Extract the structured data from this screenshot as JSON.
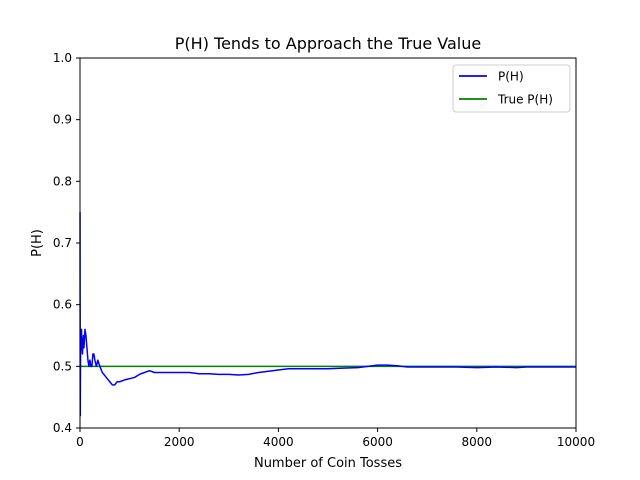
{
  "chart_data": {
    "type": "line",
    "title": "P(H) Tends to Approach the True Value",
    "xlabel": "Number of Coin Tosses",
    "ylabel": "P(H)",
    "xlim": [
      0,
      10000
    ],
    "ylim": [
      0.4,
      1.0
    ],
    "xticks": [
      0,
      2000,
      4000,
      6000,
      8000,
      10000
    ],
    "xtick_labels": [
      "0",
      "2000",
      "4000",
      "6000",
      "8000",
      "10000"
    ],
    "yticks": [
      0.4,
      0.5,
      0.6,
      0.7,
      0.8,
      0.9,
      1.0
    ],
    "ytick_labels": [
      "0.4",
      "0.5",
      "0.6",
      "0.7",
      "0.8",
      "0.9",
      "1.0"
    ],
    "grid": false,
    "legend_position": "top-right",
    "series": [
      {
        "name": "P(H)",
        "color": "#0000ff",
        "x": [
          1,
          2,
          3,
          4,
          5,
          6,
          8,
          10,
          12,
          15,
          20,
          25,
          30,
          40,
          50,
          60,
          70,
          80,
          100,
          120,
          140,
          160,
          180,
          200,
          220,
          240,
          260,
          280,
          300,
          330,
          360,
          400,
          450,
          500,
          550,
          600,
          650,
          700,
          750,
          800,
          900,
          1000,
          1100,
          1200,
          1300,
          1400,
          1500,
          1600,
          1800,
          2000,
          2200,
          2400,
          2600,
          2800,
          3000,
          3200,
          3400,
          3600,
          3800,
          4000,
          4200,
          4500,
          5000,
          5300,
          5600,
          5800,
          6000,
          6200,
          6400,
          6600,
          7000,
          7400,
          7600,
          8000,
          8400,
          8800,
          9000,
          9200,
          9500,
          10000
        ],
        "values": [
          0.75,
          0.62,
          0.58,
          0.5,
          0.44,
          0.42,
          0.47,
          0.5,
          0.52,
          0.55,
          0.56,
          0.54,
          0.56,
          0.53,
          0.52,
          0.54,
          0.55,
          0.53,
          0.56,
          0.55,
          0.53,
          0.51,
          0.5,
          0.51,
          0.5,
          0.5,
          0.52,
          0.52,
          0.51,
          0.5,
          0.51,
          0.5,
          0.49,
          0.485,
          0.48,
          0.475,
          0.47,
          0.47,
          0.475,
          0.475,
          0.478,
          0.48,
          0.482,
          0.487,
          0.49,
          0.493,
          0.49,
          0.49,
          0.49,
          0.49,
          0.49,
          0.488,
          0.488,
          0.487,
          0.487,
          0.486,
          0.487,
          0.49,
          0.492,
          0.494,
          0.496,
          0.496,
          0.496,
          0.497,
          0.498,
          0.5,
          0.502,
          0.502,
          0.501,
          0.499,
          0.499,
          0.499,
          0.499,
          0.498,
          0.499,
          0.498,
          0.499,
          0.499,
          0.499,
          0.499
        ]
      },
      {
        "name": "True P(H)",
        "color": "#008000",
        "x": [
          0,
          10000
        ],
        "values": [
          0.5,
          0.5
        ]
      }
    ]
  }
}
